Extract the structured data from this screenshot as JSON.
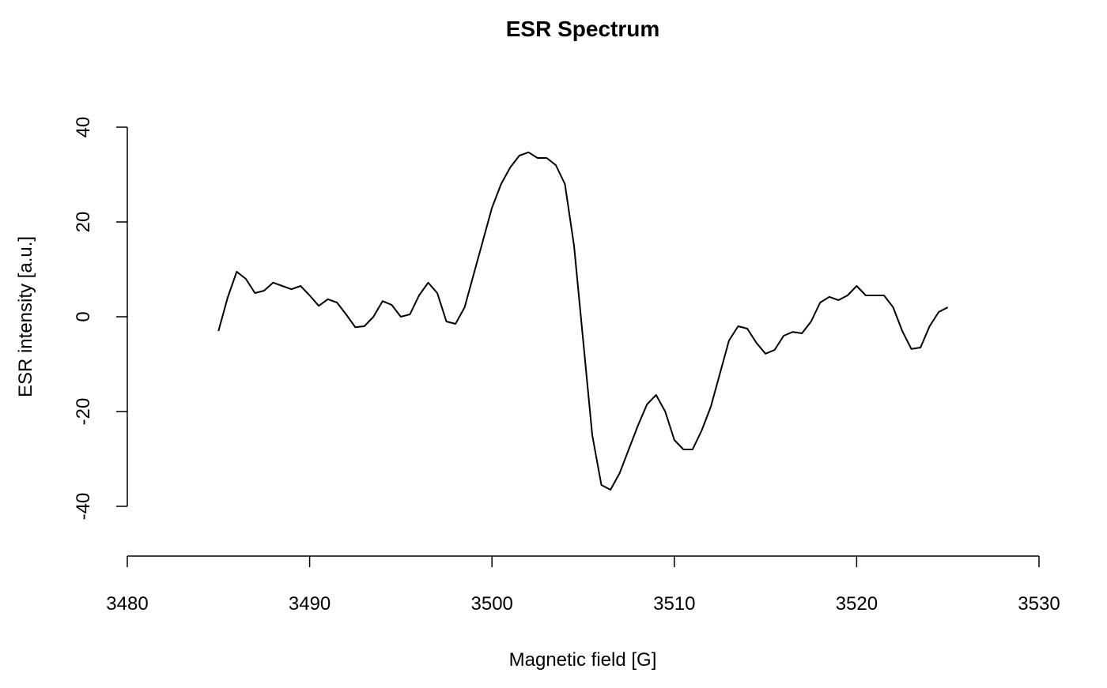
{
  "chart_data": {
    "type": "line",
    "title": "ESR Spectrum",
    "x_label": "Magnetic field [G]",
    "y_label": "ESR intensity [a.u.]",
    "x": [
      3485,
      3485.5,
      3486,
      3486.5,
      3487,
      3487.5,
      3488,
      3488.5,
      3489,
      3489.5,
      3490,
      3490.5,
      3491,
      3491.5,
      3492,
      3492.5,
      3493,
      3493.5,
      3494,
      3494.5,
      3495,
      3495.5,
      3496,
      3496.5,
      3497,
      3497.5,
      3498,
      3498.5,
      3499,
      3499.5,
      3500,
      3500.5,
      3501,
      3501.5,
      3502,
      3502.5,
      3503,
      3503.5,
      3504,
      3504.5,
      3505,
      3505.5,
      3506,
      3506.5,
      3507,
      3507.5,
      3508,
      3508.5,
      3509,
      3509.5,
      3510,
      3510.5,
      3511,
      3511.5,
      3512,
      3512.5,
      3513,
      3513.5,
      3514,
      3514.5,
      3515,
      3515.5,
      3516,
      3516.5,
      3517,
      3517.5,
      3518,
      3518.5,
      3519,
      3519.5,
      3520,
      3520.5,
      3521,
      3521.5,
      3522,
      3522.5,
      3523,
      3523.5,
      3524,
      3524.5,
      3525
    ],
    "series": [
      {
        "name": "ESR",
        "color": "#000000",
        "values": [
          -3,
          4,
          9.5,
          8,
          5,
          5.5,
          7.2,
          6.5,
          5.8,
          6.5,
          4.5,
          2.3,
          3.7,
          3,
          0.5,
          -2.2,
          -2,
          0,
          3.3,
          2.5,
          0,
          0.5,
          4.5,
          7.2,
          5,
          -1,
          -1.5,
          2,
          9,
          16,
          23,
          28,
          31.5,
          34,
          34.7,
          33.5,
          33.5,
          32,
          28,
          15,
          -5,
          -25,
          -35.5,
          -36.5,
          -33,
          -28,
          -23,
          -18.5,
          -16.5,
          -20,
          -26,
          -28,
          -28,
          -24,
          -19,
          -12,
          -5,
          -2,
          -2.5,
          -5.5,
          -7.8,
          -7,
          -4,
          -3.2,
          -3.5,
          -1,
          3,
          4.2,
          3.5,
          4.5,
          6.5,
          4.5,
          4.5,
          4.5,
          2,
          -3,
          -6.8,
          -6.5,
          -2,
          1,
          2
        ]
      }
    ],
    "xlim": [
      3480,
      3530
    ],
    "ylim": [
      -50.5,
      40
    ],
    "xticks": [
      3480,
      3490,
      3500,
      3510,
      3520,
      3530
    ],
    "yticks": [
      -40,
      -20,
      0,
      20,
      40
    ],
    "grid": false
  }
}
